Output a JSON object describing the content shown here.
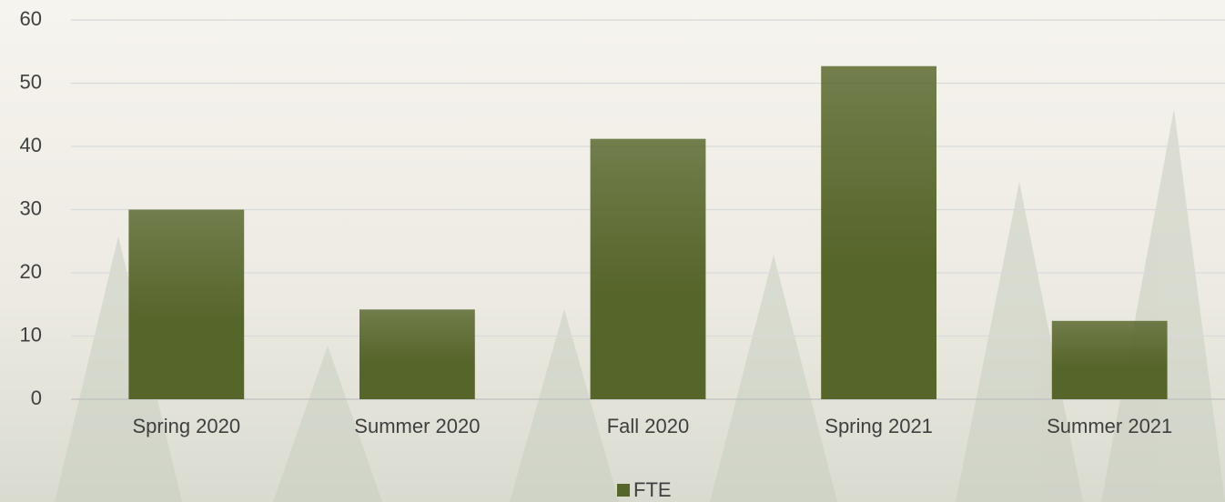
{
  "chart_data": {
    "type": "bar",
    "categories": [
      "Spring 2020",
      "Summer 2020",
      "Fall 2020",
      "Spring 2021",
      "Summer 2021"
    ],
    "series": [
      {
        "name": "FTE",
        "color": "#56652a",
        "values": [
          30,
          14.2,
          41.2,
          52.7,
          12.4
        ]
      }
    ],
    "ylim": [
      0,
      60
    ],
    "yticks": [
      0,
      10,
      20,
      30,
      40,
      50,
      60
    ],
    "grid": true,
    "legend": "bottom"
  }
}
